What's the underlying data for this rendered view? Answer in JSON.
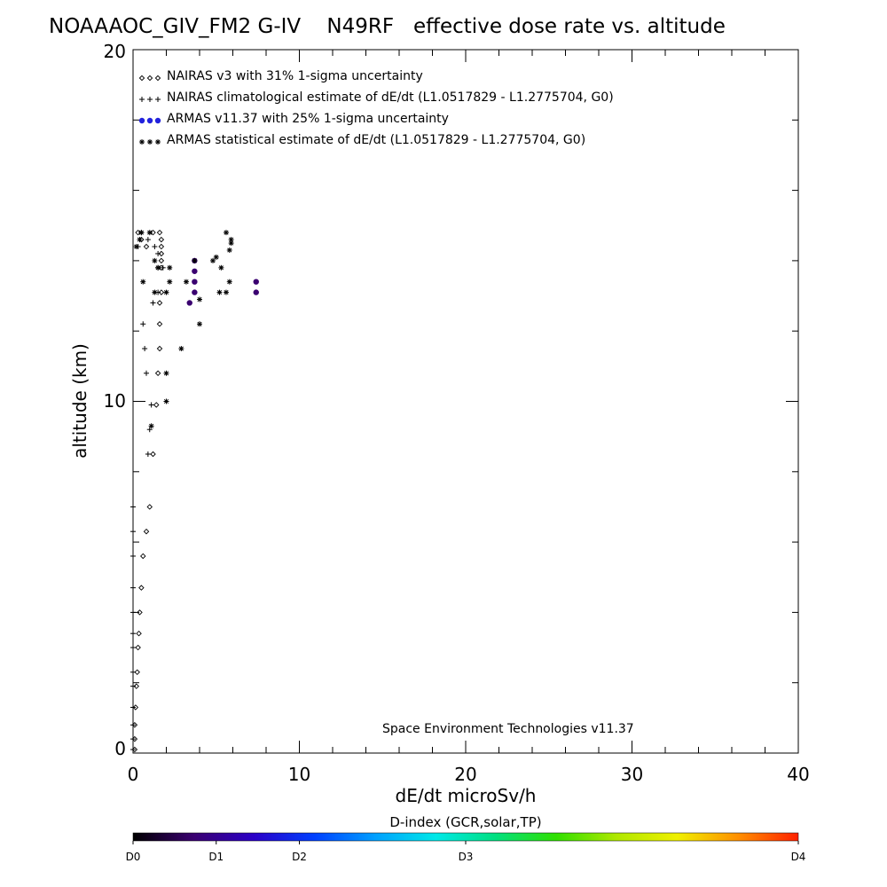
{
  "chart_data": {
    "type": "scatter",
    "title": "NOAAAOC_GIV_FM2 G-IV    N49RF   effective dose rate vs. altitude",
    "xlabel": "dE/dt microSv/h",
    "ylabel": "altitude (km)",
    "xlim": [
      0,
      40
    ],
    "ylim": [
      0,
      20
    ],
    "xticks": [
      "0",
      "10",
      "20",
      "30",
      "40"
    ],
    "yticks": [
      "0",
      "10",
      "20"
    ],
    "grid": false,
    "legend_position": "top-left",
    "credit": "Space Environment Technologies v11.37",
    "series": [
      {
        "name": "NAIRAS v3 with 31% 1-sigma uncertainty",
        "marker": "diamond",
        "color": "#000000",
        "points": [
          [
            0.1,
            0.1
          ],
          [
            0.1,
            0.4
          ],
          [
            0.1,
            0.8
          ],
          [
            0.15,
            1.3
          ],
          [
            0.2,
            1.9
          ],
          [
            0.25,
            2.3
          ],
          [
            0.3,
            3.0
          ],
          [
            0.35,
            3.4
          ],
          [
            0.4,
            4.0
          ],
          [
            0.5,
            4.7
          ],
          [
            0.6,
            5.6
          ],
          [
            0.8,
            6.3
          ],
          [
            1.0,
            7.0
          ],
          [
            1.2,
            8.5
          ],
          [
            1.4,
            9.9
          ],
          [
            1.5,
            10.8
          ],
          [
            1.6,
            11.5
          ],
          [
            1.6,
            12.2
          ],
          [
            1.6,
            12.8
          ],
          [
            1.7,
            13.1
          ],
          [
            1.7,
            13.8
          ],
          [
            1.7,
            14.0
          ],
          [
            1.7,
            14.2
          ],
          [
            1.7,
            14.4
          ],
          [
            1.7,
            14.6
          ],
          [
            1.6,
            14.8
          ],
          [
            1.2,
            14.8
          ],
          [
            0.8,
            14.4
          ],
          [
            0.5,
            14.6
          ],
          [
            0.3,
            14.8
          ]
        ]
      },
      {
        "name": "NAIRAS climatological estimate of dE/dt (L1.0517829 - L1.2775704, G0)",
        "marker": "plus",
        "color": "#000000",
        "points": [
          [
            0.0,
            0.1
          ],
          [
            0.0,
            0.4
          ],
          [
            0.0,
            0.8
          ],
          [
            0.0,
            1.3
          ],
          [
            0.0,
            1.9
          ],
          [
            0.0,
            2.3
          ],
          [
            0.0,
            3.0
          ],
          [
            0.0,
            3.4
          ],
          [
            0.0,
            4.0
          ],
          [
            0.0,
            4.7
          ],
          [
            0.0,
            5.6
          ],
          [
            0.0,
            6.3
          ],
          [
            0.0,
            7.0
          ],
          [
            0.9,
            8.5
          ],
          [
            1.0,
            9.2
          ],
          [
            1.1,
            9.9
          ],
          [
            0.8,
            10.8
          ],
          [
            0.7,
            11.5
          ],
          [
            0.6,
            12.2
          ],
          [
            1.2,
            12.8
          ],
          [
            1.5,
            13.1
          ],
          [
            1.5,
            13.8
          ],
          [
            1.8,
            13.8
          ],
          [
            1.5,
            14.2
          ],
          [
            1.3,
            14.4
          ],
          [
            0.9,
            14.6
          ],
          [
            0.5,
            14.8
          ],
          [
            0.3,
            14.4
          ]
        ]
      },
      {
        "name": "ARMAS v11.37 with 25% 1-sigma uncertainty",
        "marker": "circle",
        "color": "#2222dd",
        "points": [
          [
            3.4,
            12.8
          ],
          [
            3.7,
            13.1
          ],
          [
            3.7,
            13.4
          ],
          [
            3.7,
            13.7
          ],
          [
            3.7,
            14.0
          ],
          [
            7.4,
            13.1
          ],
          [
            7.4,
            13.4
          ]
        ]
      },
      {
        "name": "ARMAS statistical estimate of dE/dt (L1.0517829 - L1.2775704, G0)",
        "marker": "asterisk",
        "color": "#000000",
        "points": [
          [
            2.0,
            10.0
          ],
          [
            2.0,
            10.8
          ],
          [
            1.1,
            9.3
          ],
          [
            2.9,
            11.5
          ],
          [
            4.0,
            12.2
          ],
          [
            4.0,
            12.9
          ],
          [
            2.0,
            13.1
          ],
          [
            2.2,
            13.4
          ],
          [
            2.2,
            13.8
          ],
          [
            3.2,
            13.4
          ],
          [
            3.7,
            14.0
          ],
          [
            5.2,
            13.1
          ],
          [
            5.6,
            13.1
          ],
          [
            5.8,
            13.4
          ],
          [
            5.3,
            13.8
          ],
          [
            5.0,
            14.1
          ],
          [
            4.8,
            14.0
          ],
          [
            5.8,
            14.3
          ],
          [
            5.9,
            14.5
          ],
          [
            5.9,
            14.6
          ],
          [
            5.6,
            14.8
          ],
          [
            1.0,
            14.8
          ],
          [
            0.5,
            14.8
          ],
          [
            0.4,
            14.6
          ],
          [
            0.2,
            14.4
          ],
          [
            1.3,
            14.0
          ],
          [
            1.5,
            13.8
          ],
          [
            1.3,
            13.1
          ],
          [
            0.6,
            13.4
          ]
        ]
      }
    ],
    "colorbar": {
      "title": "D-index (GCR,solar,TP)",
      "labels": [
        {
          "text": "D0",
          "at": 0.0
        },
        {
          "text": "D1",
          "at": 0.125
        },
        {
          "text": "D2",
          "at": 0.25
        },
        {
          "text": "D3",
          "at": 0.5
        },
        {
          "text": "D4",
          "at": 1.0
        }
      ],
      "colors": [
        "#000000",
        "#3a0070",
        "#2b00c8",
        "#0040ff",
        "#00a0ff",
        "#00e8e8",
        "#00e080",
        "#30e000",
        "#b0e800",
        "#f0f000",
        "#ff9000",
        "#ff2000"
      ]
    }
  }
}
